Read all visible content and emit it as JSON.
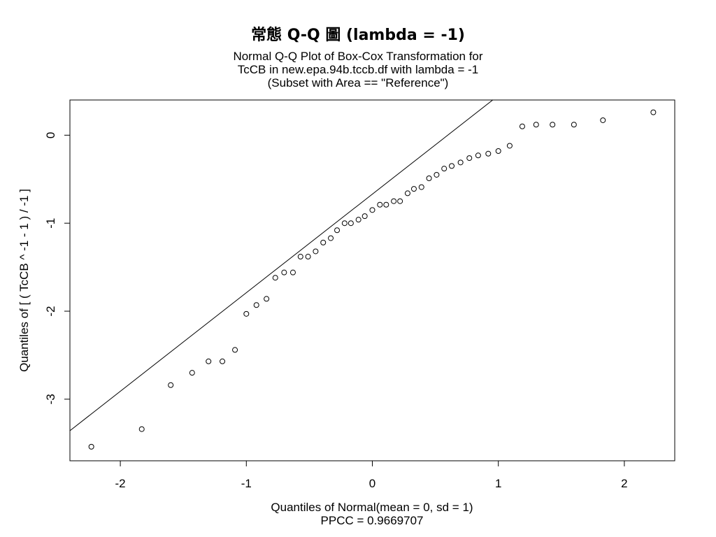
{
  "title": "常態 Q-Q 圖 (lambda = -1)",
  "subtitle_lines": [
    "Normal Q-Q Plot of Box-Cox Transformation for",
    "TcCB in new.epa.94b.tccb.df with lambda = -1",
    "(Subset with Area == \"Reference\")"
  ],
  "xlabel_lines": [
    "Quantiles of Normal(mean = 0, sd = 1)",
    "PPCC = 0.9669707"
  ],
  "chart_data": {
    "type": "scatter",
    "title": "常態 Q-Q 圖 (lambda = -1)",
    "xlabel": "Quantiles of Normal(mean = 0, sd = 1)",
    "ylabel": "Quantiles of [ ( TcCB ^ -1 - 1 ) / -1 ]",
    "xlim": [
      -2.4,
      2.4
    ],
    "ylim": [
      -3.7,
      0.4
    ],
    "x_ticks": [
      -2,
      -1,
      0,
      1,
      2
    ],
    "x_tick_labels": [
      "-2",
      "-1",
      "0",
      "1",
      "2"
    ],
    "y_ticks": [
      0,
      -1,
      -2,
      -3
    ],
    "y_tick_labels": [
      "0",
      "-1",
      "-2",
      "-3"
    ],
    "grid": false,
    "reference_line": {
      "intercept": -0.67,
      "slope": 1.12
    },
    "points": {
      "x": [
        -2.23,
        -1.83,
        -1.6,
        -1.43,
        -1.3,
        -1.19,
        -1.09,
        -1.0,
        -0.92,
        -0.84,
        -0.77,
        -0.7,
        -0.63,
        -0.57,
        -0.51,
        -0.45,
        -0.39,
        -0.33,
        -0.28,
        -0.22,
        -0.17,
        -0.11,
        -0.06,
        0.0,
        0.06,
        0.11,
        0.17,
        0.22,
        0.28,
        0.33,
        0.39,
        0.45,
        0.51,
        0.57,
        0.63,
        0.7,
        0.77,
        0.84,
        0.92,
        1.0,
        1.09,
        1.19,
        1.3,
        1.43,
        1.6,
        1.83,
        2.23
      ],
      "y": [
        -3.54,
        -3.34,
        -2.84,
        -2.7,
        -2.57,
        -2.57,
        -2.44,
        -2.03,
        -1.93,
        -1.86,
        -1.62,
        -1.56,
        -1.56,
        -1.38,
        -1.38,
        -1.32,
        -1.22,
        -1.17,
        -1.08,
        -1.0,
        -1.0,
        -0.96,
        -0.92,
        -0.85,
        -0.79,
        -0.79,
        -0.75,
        -0.75,
        -0.66,
        -0.61,
        -0.59,
        -0.49,
        -0.45,
        -0.38,
        -0.35,
        -0.31,
        -0.26,
        -0.23,
        -0.21,
        -0.18,
        -0.12,
        0.1,
        0.12,
        0.12,
        0.12,
        0.17,
        0.26
      ]
    }
  }
}
